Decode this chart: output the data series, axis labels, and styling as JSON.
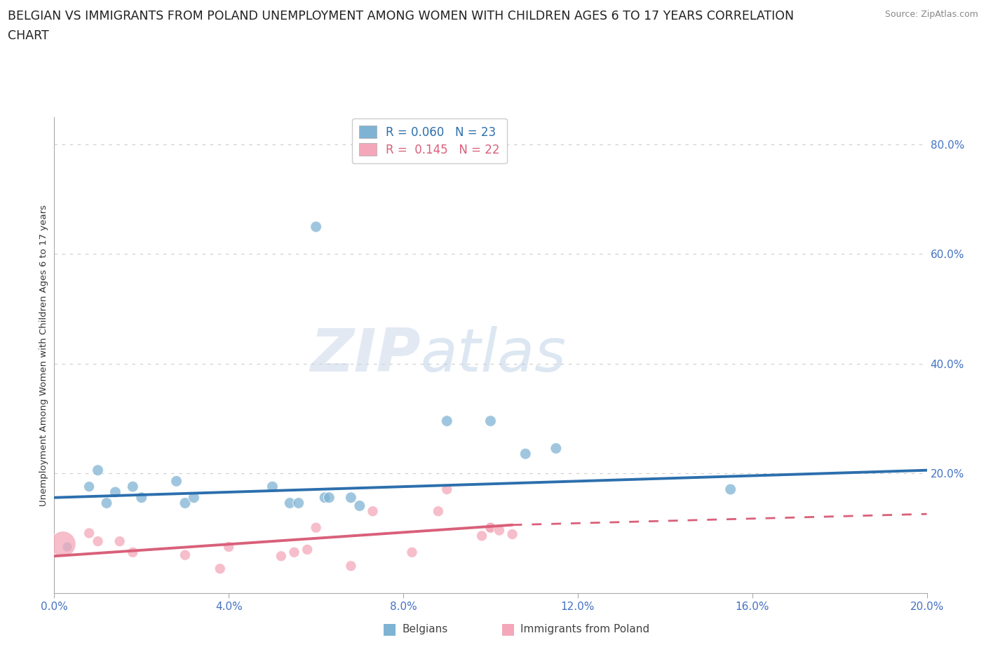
{
  "title_line1": "BELGIAN VS IMMIGRANTS FROM POLAND UNEMPLOYMENT AMONG WOMEN WITH CHILDREN AGES 6 TO 17 YEARS CORRELATION",
  "title_line2": "CHART",
  "source": "Source: ZipAtlas.com",
  "ylabel": "Unemployment Among Women with Children Ages 6 to 17 years",
  "xlim": [
    0.0,
    0.2
  ],
  "ylim": [
    -0.02,
    0.85
  ],
  "xticks": [
    0.0,
    0.04,
    0.08,
    0.12,
    0.16,
    0.2
  ],
  "yticks_right": [
    0.2,
    0.4,
    0.6,
    0.8
  ],
  "r_belgian": 0.06,
  "n_belgian": 23,
  "r_poland": 0.145,
  "n_poland": 22,
  "blue_color": "#7fb3d3",
  "pink_color": "#f4a7b9",
  "trend_blue": "#2c6fad",
  "trend_pink": "#d9607a",
  "background_color": "#ffffff",
  "watermark_zip": "ZIP",
  "watermark_atlas": "atlas",
  "belgian_x": [
    0.003,
    0.008,
    0.01,
    0.012,
    0.014,
    0.018,
    0.02,
    0.028,
    0.03,
    0.032,
    0.05,
    0.054,
    0.056,
    0.06,
    0.062,
    0.063,
    0.068,
    0.07,
    0.09,
    0.1,
    0.108,
    0.115,
    0.155
  ],
  "belgian_y": [
    0.065,
    0.175,
    0.205,
    0.145,
    0.165,
    0.175,
    0.155,
    0.185,
    0.145,
    0.155,
    0.175,
    0.145,
    0.145,
    0.65,
    0.155,
    0.155,
    0.155,
    0.14,
    0.295,
    0.295,
    0.235,
    0.245,
    0.17
  ],
  "belgian_sizes": [
    100,
    120,
    130,
    130,
    130,
    130,
    130,
    130,
    130,
    130,
    130,
    130,
    130,
    130,
    130,
    130,
    130,
    130,
    130,
    130,
    130,
    130,
    130
  ],
  "poland_x": [
    0.002,
    0.008,
    0.01,
    0.015,
    0.018,
    0.03,
    0.038,
    0.04,
    0.052,
    0.055,
    0.058,
    0.06,
    0.068,
    0.073,
    0.082,
    0.088,
    0.09,
    0.098,
    0.1,
    0.1,
    0.102,
    0.105
  ],
  "poland_y": [
    0.07,
    0.09,
    0.075,
    0.075,
    0.055,
    0.05,
    0.025,
    0.065,
    0.048,
    0.055,
    0.06,
    0.1,
    0.03,
    0.13,
    0.055,
    0.13,
    0.17,
    0.085,
    0.1,
    0.1,
    0.095,
    0.088
  ],
  "poland_sizes": [
    700,
    120,
    120,
    120,
    120,
    120,
    120,
    120,
    120,
    120,
    120,
    120,
    120,
    120,
    120,
    120,
    120,
    120,
    120,
    120,
    120,
    120
  ],
  "blue_trend_x0": 0.0,
  "blue_trend_y0": 0.155,
  "blue_trend_x1": 0.2,
  "blue_trend_y1": 0.205,
  "pink_trend_x0": 0.0,
  "pink_trend_y0": 0.048,
  "pink_trend_x1_solid": 0.105,
  "pink_trend_y1_solid": 0.105,
  "pink_trend_x1_dash": 0.2,
  "pink_trend_y1_dash": 0.125
}
